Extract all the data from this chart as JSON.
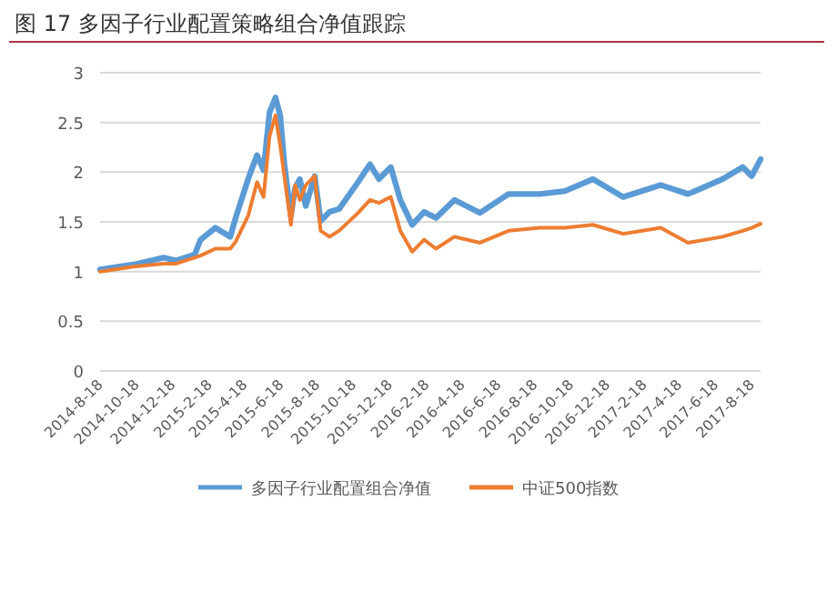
{
  "chart_data": {
    "type": "line",
    "title": "图 17   多因子行业配置策略组合净值跟踪",
    "xlim": [
      "2014-08-18",
      "2017-09-02"
    ],
    "ylim": [
      0,
      3
    ],
    "yticks": [
      0,
      0.5,
      1,
      1.5,
      2,
      2.5,
      3
    ],
    "xticks": [
      {
        "value": "2014-08-18",
        "label": "2014-8-18"
      },
      {
        "value": "2014-10-18",
        "label": "2014-10-18"
      },
      {
        "value": "2014-12-18",
        "label": "2014-12-18"
      },
      {
        "value": "2015-02-18",
        "label": "2015-2-18"
      },
      {
        "value": "2015-04-18",
        "label": "2015-4-18"
      },
      {
        "value": "2015-06-18",
        "label": "2015-6-18"
      },
      {
        "value": "2015-08-18",
        "label": "2015-8-18"
      },
      {
        "value": "2015-10-18",
        "label": "2015-10-18"
      },
      {
        "value": "2015-12-18",
        "label": "2015-12-18"
      },
      {
        "value": "2016-02-18",
        "label": "2016-2-18"
      },
      {
        "value": "2016-04-18",
        "label": "2016-4-18"
      },
      {
        "value": "2016-06-18",
        "label": "2016-6-18"
      },
      {
        "value": "2016-08-18",
        "label": "2016-8-18"
      },
      {
        "value": "2016-10-18",
        "label": "2016-10-18"
      },
      {
        "value": "2016-12-18",
        "label": "2016-12-18"
      },
      {
        "value": "2017-02-18",
        "label": "2017-2-18"
      },
      {
        "value": "2017-04-18",
        "label": "2017-4-18"
      },
      {
        "value": "2017-06-18",
        "label": "2017-6-18"
      },
      {
        "value": "2017-08-18",
        "label": "2017-8-18"
      }
    ],
    "grid": "y",
    "legend": "bottom",
    "marker": "none",
    "line_style": "solid",
    "x": [
      "2014-08-18",
      "2014-10-13",
      "2014-12-03",
      "2014-12-24",
      "2015-01-24",
      "2015-02-03",
      "2015-02-28",
      "2015-03-25",
      "2015-04-03",
      "2015-04-24",
      "2015-05-09",
      "2015-05-20",
      "2015-05-30",
      "2015-06-09",
      "2015-06-17",
      "2015-06-24",
      "2015-07-05",
      "2015-07-12",
      "2015-07-20",
      "2015-07-30",
      "2015-08-14",
      "2015-08-24",
      "2015-09-08",
      "2015-09-24",
      "2015-10-26",
      "2015-11-15",
      "2015-11-30",
      "2015-12-20",
      "2016-01-05",
      "2016-01-25",
      "2016-02-14",
      "2016-03-05",
      "2016-04-05",
      "2016-05-18",
      "2016-07-05",
      "2016-08-27",
      "2016-10-08",
      "2016-11-24",
      "2017-01-14",
      "2017-03-18",
      "2017-05-03",
      "2017-06-30",
      "2017-08-03",
      "2017-08-18",
      "2017-09-02"
    ],
    "series": [
      {
        "name": "多因子行业配置组合净值",
        "color": "#5b9bd5",
        "values": [
          1.02,
          1.07,
          1.14,
          1.11,
          1.17,
          1.32,
          1.44,
          1.35,
          1.54,
          1.93,
          2.17,
          2.02,
          2.6,
          2.75,
          2.57,
          2.08,
          1.56,
          1.84,
          1.93,
          1.66,
          1.96,
          1.51,
          1.6,
          1.63,
          1.9,
          2.08,
          1.93,
          2.05,
          1.72,
          1.47,
          1.6,
          1.54,
          1.72,
          1.59,
          1.78,
          1.78,
          1.81,
          1.93,
          1.75,
          1.87,
          1.78,
          1.93,
          2.05,
          1.96,
          2.13
        ]
      },
      {
        "name": "中证500指数",
        "color": "#ed7d31",
        "values": [
          1.0,
          1.05,
          1.08,
          1.08,
          1.14,
          1.16,
          1.23,
          1.23,
          1.3,
          1.56,
          1.9,
          1.75,
          2.36,
          2.57,
          2.27,
          1.96,
          1.47,
          1.87,
          1.72,
          1.87,
          1.96,
          1.41,
          1.35,
          1.41,
          1.59,
          1.72,
          1.69,
          1.75,
          1.41,
          1.2,
          1.32,
          1.23,
          1.35,
          1.29,
          1.41,
          1.44,
          1.44,
          1.47,
          1.38,
          1.44,
          1.29,
          1.35,
          1.41,
          1.44,
          1.48
        ]
      }
    ]
  }
}
